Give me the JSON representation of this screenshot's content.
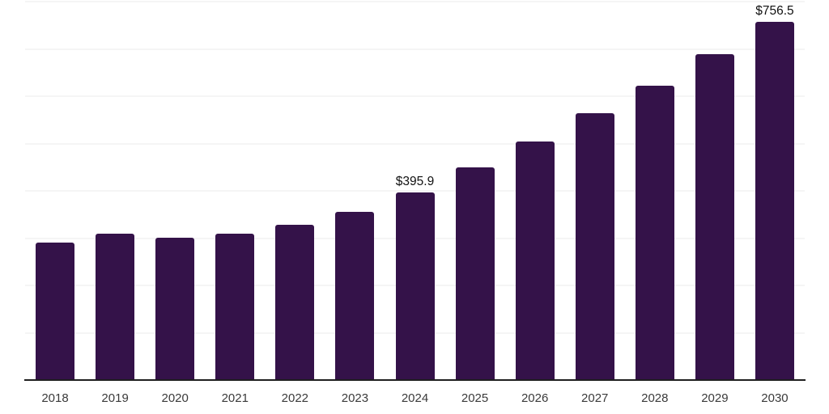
{
  "chart_data": {
    "type": "bar",
    "title": "",
    "xlabel": "",
    "ylabel": "",
    "categories": [
      "2018",
      "2019",
      "2020",
      "2021",
      "2022",
      "2023",
      "2024",
      "2025",
      "2026",
      "2027",
      "2028",
      "2029",
      "2030"
    ],
    "values": [
      290,
      310,
      301,
      309,
      329,
      356,
      395.9,
      450,
      504,
      564,
      622,
      689,
      756.5
    ],
    "data_labels": [
      {
        "category": "2024",
        "text": "$395.9"
      },
      {
        "category": "2030",
        "text": "$756.5"
      }
    ],
    "ylim": [
      0,
      800
    ],
    "gridline_step": 100,
    "grid": "horizontal",
    "legend": "none",
    "colors": {
      "bar": "#341249",
      "gridline": "#f5f5f5",
      "axis_line": "#1f1f1f",
      "tick_label": "#3a3a3a",
      "data_label": "#111111"
    }
  }
}
